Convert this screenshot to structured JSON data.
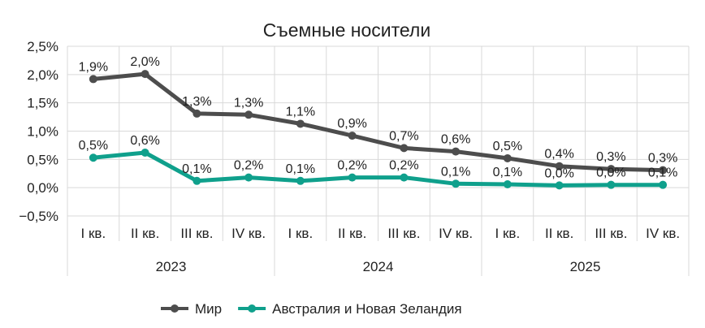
{
  "chart_data": {
    "type": "line",
    "title": "Съемные носители",
    "xlabel": "",
    "ylabel": "",
    "ylim": [
      -0.5,
      2.5
    ],
    "yticks": [
      -0.5,
      0.0,
      0.5,
      1.0,
      1.5,
      2.0,
      2.5
    ],
    "ytick_labels": [
      "−0,5%",
      "0,0%",
      "0,5%",
      "1,0%",
      "1,5%",
      "2,0%",
      "2,5%"
    ],
    "categories": [
      "I кв.",
      "II кв.",
      "III кв.",
      "IV кв.",
      "I кв.",
      "II кв.",
      "III кв.",
      "IV кв.",
      "I кв.",
      "II кв.",
      "III кв.",
      "IV кв."
    ],
    "groups": [
      {
        "label": "2023",
        "span": 4
      },
      {
        "label": "2024",
        "span": 4
      },
      {
        "label": "2025",
        "span": 4
      }
    ],
    "grid": true,
    "legend_position": "bottom",
    "series": [
      {
        "name": "Мир",
        "color": "#4d4d4d",
        "values": [
          1.92,
          2.01,
          1.31,
          1.29,
          1.13,
          0.92,
          0.7,
          0.64,
          0.52,
          0.38,
          0.33,
          0.31
        ],
        "labels": [
          "1,9%",
          "2,0%",
          "1,3%",
          "1,3%",
          "1,1%",
          "0,9%",
          "0,7%",
          "0,6%",
          "0,5%",
          "0,4%",
          "0,3%",
          "0,3%"
        ]
      },
      {
        "name": "Австралия и Новая Зеландия",
        "color": "#0fa08c",
        "values": [
          0.53,
          0.62,
          0.12,
          0.18,
          0.12,
          0.18,
          0.18,
          0.07,
          0.06,
          0.04,
          0.05,
          0.05
        ],
        "labels": [
          "0,5%",
          "0,6%",
          "0,1%",
          "0,2%",
          "0,1%",
          "0,2%",
          "0,2%",
          "0,1%",
          "0,1%",
          "0,0%",
          "0,0%",
          "0,1%"
        ]
      }
    ]
  }
}
